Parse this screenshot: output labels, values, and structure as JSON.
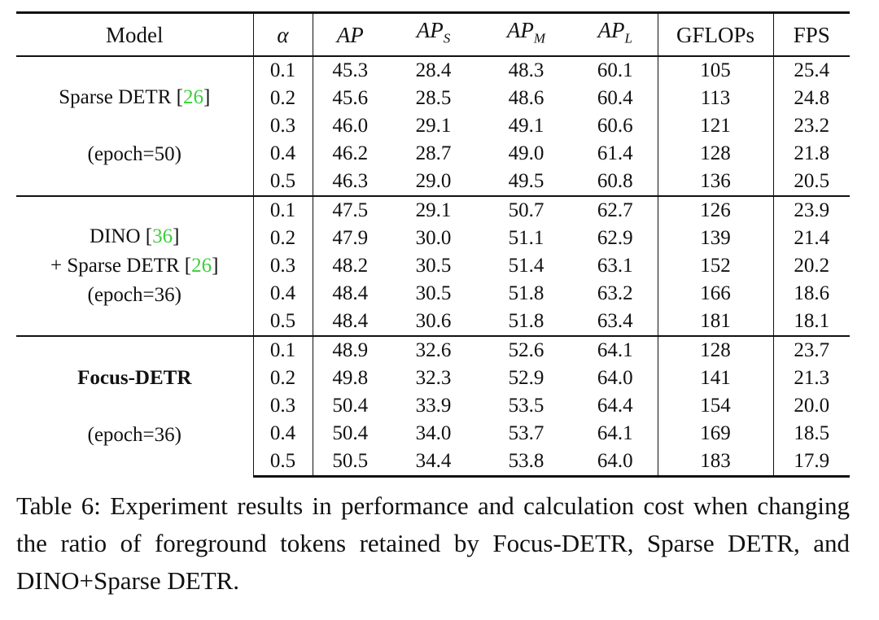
{
  "table": {
    "headers": {
      "model": "Model",
      "alpha": "α",
      "ap": "AP",
      "aps_base": "AP",
      "aps_sub": "S",
      "apm_base": "AP",
      "apm_sub": "M",
      "apl_base": "AP",
      "apl_sub": "L",
      "gflops": "GFLOPs",
      "fps": "FPS"
    },
    "groups": [
      {
        "model_line1": "Sparse DETR [",
        "model_cite1": "26",
        "model_close1": "]",
        "model_epoch": "(epoch=50)",
        "rows": [
          {
            "alpha": "0.1",
            "ap": "45.3",
            "aps": "28.4",
            "apm": "48.3",
            "apl": "60.1",
            "gflops": "105",
            "fps": "25.4"
          },
          {
            "alpha": "0.2",
            "ap": "45.6",
            "aps": "28.5",
            "apm": "48.6",
            "apl": "60.4",
            "gflops": "113",
            "fps": "24.8"
          },
          {
            "alpha": "0.3",
            "ap": "46.0",
            "aps": "29.1",
            "apm": "49.1",
            "apl": "60.6",
            "gflops": "121",
            "fps": "23.2"
          },
          {
            "alpha": "0.4",
            "ap": "46.2",
            "aps": "28.7",
            "apm": "49.0",
            "apl": "61.4",
            "gflops": "128",
            "fps": "21.8"
          },
          {
            "alpha": "0.5",
            "ap": "46.3",
            "aps": "29.0",
            "apm": "49.5",
            "apl": "60.8",
            "gflops": "136",
            "fps": "20.5"
          }
        ]
      },
      {
        "model_line1": "DINO [",
        "model_cite1": "36",
        "model_close1": "]",
        "model_line2": "+ Sparse DETR [",
        "model_cite2": "26",
        "model_close2": "]",
        "model_epoch": "(epoch=36)",
        "rows": [
          {
            "alpha": "0.1",
            "ap": "47.5",
            "aps": "29.1",
            "apm": "50.7",
            "apl": "62.7",
            "gflops": "126",
            "fps": "23.9"
          },
          {
            "alpha": "0.2",
            "ap": "47.9",
            "aps": "30.0",
            "apm": "51.1",
            "apl": "62.9",
            "gflops": "139",
            "fps": "21.4"
          },
          {
            "alpha": "0.3",
            "ap": "48.2",
            "aps": "30.5",
            "apm": "51.4",
            "apl": "63.1",
            "gflops": "152",
            "fps": "20.2"
          },
          {
            "alpha": "0.4",
            "ap": "48.4",
            "aps": "30.5",
            "apm": "51.8",
            "apl": "63.2",
            "gflops": "166",
            "fps": "18.6"
          },
          {
            "alpha": "0.5",
            "ap": "48.4",
            "aps": "30.6",
            "apm": "51.8",
            "apl": "63.4",
            "gflops": "181",
            "fps": "18.1"
          }
        ]
      },
      {
        "model_line1": "Focus-DETR",
        "model_epoch": "(epoch=36)",
        "rows": [
          {
            "alpha": "0.1",
            "ap": "48.9",
            "aps": "32.6",
            "apm": "52.6",
            "apl": "64.1",
            "gflops": "128",
            "fps": "23.7"
          },
          {
            "alpha": "0.2",
            "ap": "49.8",
            "aps": "32.3",
            "apm": "52.9",
            "apl": "64.0",
            "gflops": "141",
            "fps": "21.3"
          },
          {
            "alpha": "0.3",
            "ap": "50.4",
            "aps": "33.9",
            "apm": "53.5",
            "apl": "64.4",
            "gflops": "154",
            "fps": "20.0"
          },
          {
            "alpha": "0.4",
            "ap": "50.4",
            "aps": "34.0",
            "apm": "53.7",
            "apl": "64.1",
            "gflops": "169",
            "fps": "18.5"
          },
          {
            "alpha": "0.5",
            "ap": "50.5",
            "aps": "34.4",
            "apm": "53.8",
            "apl": "64.0",
            "gflops": "183",
            "fps": "17.9"
          }
        ]
      }
    ]
  },
  "caption": "Table 6: Experiment results in performance and calculation cost when changing the ratio of foreground tokens retained by Focus-DETR, Sparse DETR, and DINO+Sparse DETR.",
  "colors": {
    "citation": "#3ccf3c",
    "rule": "#111111"
  }
}
